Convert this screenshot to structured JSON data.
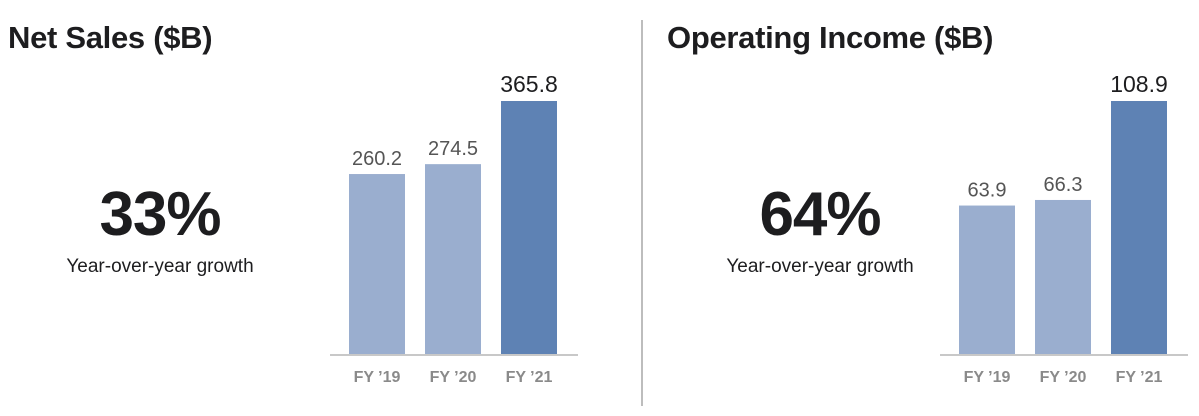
{
  "colors": {
    "bar_light": "#9aaecf",
    "bar_highlight": "#5e82b4",
    "baseline": "#c8c8c8",
    "divider": "#bdbdbd"
  },
  "panels": [
    {
      "title": "Net Sales ($B)",
      "growth": "33%",
      "growth_label": "Year-over-year growth"
    },
    {
      "title": "Operating Income ($B)",
      "growth": "64%",
      "growth_label": "Year-over-year growth"
    }
  ],
  "chart_data": [
    {
      "type": "bar",
      "title": "Net Sales ($B)",
      "categories": [
        "FY ’19",
        "FY ’20",
        "FY ’21"
      ],
      "values": [
        260.2,
        274.5,
        365.8
      ],
      "value_labels": [
        "260.2",
        "274.5",
        "365.8"
      ],
      "highlight_index": 2,
      "ylim": [
        0,
        365.8
      ],
      "grid": false,
      "xlabel": "",
      "ylabel": ""
    },
    {
      "type": "bar",
      "title": "Operating Income ($B)",
      "categories": [
        "FY ’19",
        "FY ’20",
        "FY ’21"
      ],
      "values": [
        63.9,
        66.3,
        108.9
      ],
      "value_labels": [
        "63.9",
        "66.3",
        "108.9"
      ],
      "highlight_index": 2,
      "ylim": [
        0,
        108.9
      ],
      "grid": false,
      "xlabel": "",
      "ylabel": ""
    }
  ]
}
